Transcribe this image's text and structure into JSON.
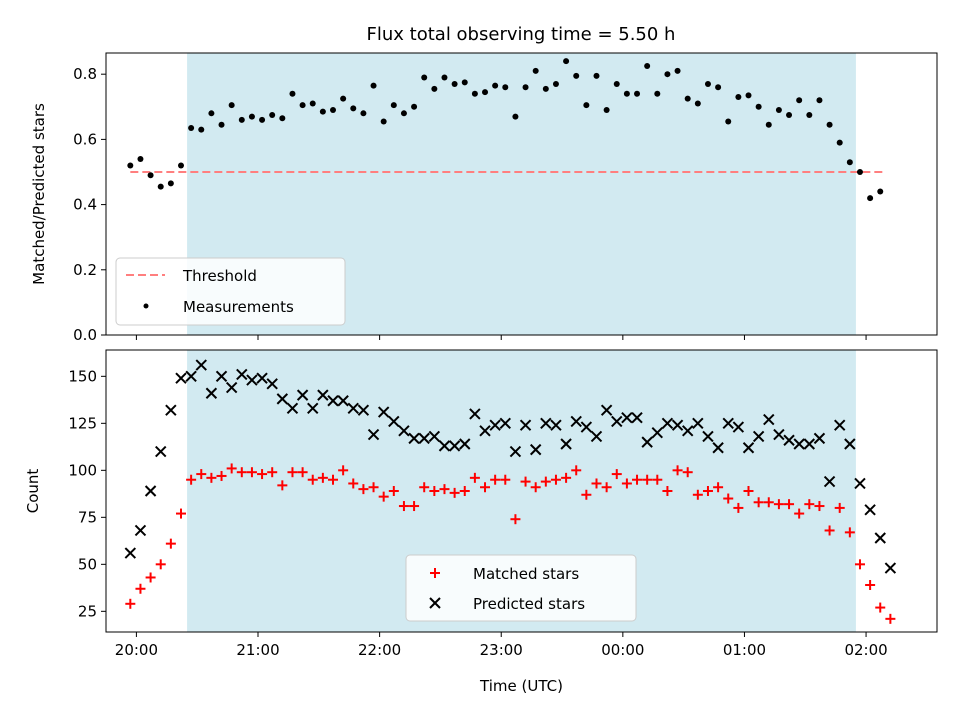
{
  "figure": {
    "title": "Flux total observing time = 5.50 h"
  },
  "colors": {
    "shade": "#add8e6",
    "threshold": "#ff7f7f",
    "measurement": "#000000",
    "matched": "#ff0000",
    "predicted": "#000000"
  },
  "chart_data": [
    {
      "type": "scatter",
      "panel": "top",
      "title": "Flux total observing time = 5.50 h",
      "xlabel": "",
      "ylabel": "Matched/Predicted stars",
      "xlim": [
        "19:45",
        "02:35"
      ],
      "ylim": [
        0,
        0.865
      ],
      "yticks": [
        0.0,
        0.2,
        0.4,
        0.6,
        0.8
      ],
      "ytick_labels": [
        "0.0",
        "0.2",
        "0.4",
        "0.6",
        "0.8"
      ],
      "shaded_interval": [
        "20:25",
        "01:55"
      ],
      "threshold": {
        "name": "Threshold",
        "value": 0.5,
        "x": [
          "19:57",
          "02:10"
        ],
        "style": "dashed"
      },
      "legend": {
        "placement": "lower-left",
        "entries": [
          "Threshold",
          "Measurements"
        ]
      },
      "series": [
        {
          "name": "Measurements",
          "marker": "dot",
          "points": [
            [
              "19:57",
              0.52
            ],
            [
              "20:02",
              0.54
            ],
            [
              "20:07",
              0.49
            ],
            [
              "20:12",
              0.455
            ],
            [
              "20:17",
              0.465
            ],
            [
              "20:22",
              0.52
            ],
            [
              "20:27",
              0.635
            ],
            [
              "20:32",
              0.63
            ],
            [
              "20:37",
              0.68
            ],
            [
              "20:42",
              0.645
            ],
            [
              "20:47",
              0.705
            ],
            [
              "20:52",
              0.66
            ],
            [
              "20:57",
              0.67
            ],
            [
              "21:02",
              0.66
            ],
            [
              "21:07",
              0.675
            ],
            [
              "21:12",
              0.665
            ],
            [
              "21:17",
              0.74
            ],
            [
              "21:22",
              0.705
            ],
            [
              "21:27",
              0.71
            ],
            [
              "21:32",
              0.685
            ],
            [
              "21:37",
              0.69
            ],
            [
              "21:42",
              0.725
            ],
            [
              "21:47",
              0.695
            ],
            [
              "21:52",
              0.68
            ],
            [
              "21:57",
              0.765
            ],
            [
              "22:02",
              0.655
            ],
            [
              "22:07",
              0.705
            ],
            [
              "22:12",
              0.68
            ],
            [
              "22:17",
              0.7
            ],
            [
              "22:22",
              0.79
            ],
            [
              "22:27",
              0.755
            ],
            [
              "22:32",
              0.79
            ],
            [
              "22:37",
              0.77
            ],
            [
              "22:42",
              0.775
            ],
            [
              "22:47",
              0.74
            ],
            [
              "22:52",
              0.745
            ],
            [
              "22:57",
              0.765
            ],
            [
              "23:02",
              0.76
            ],
            [
              "23:07",
              0.67
            ],
            [
              "23:12",
              0.76
            ],
            [
              "23:17",
              0.81
            ],
            [
              "23:22",
              0.755
            ],
            [
              "23:27",
              0.77
            ],
            [
              "23:32",
              0.84
            ],
            [
              "23:37",
              0.795
            ],
            [
              "23:42",
              0.705
            ],
            [
              "23:47",
              0.795
            ],
            [
              "23:52",
              0.69
            ],
            [
              "23:57",
              0.77
            ],
            [
              "00:02",
              0.74
            ],
            [
              "00:07",
              0.74
            ],
            [
              "00:12",
              0.825
            ],
            [
              "00:17",
              0.74
            ],
            [
              "00:22",
              0.8
            ],
            [
              "00:27",
              0.81
            ],
            [
              "00:32",
              0.725
            ],
            [
              "00:37",
              0.71
            ],
            [
              "00:42",
              0.77
            ],
            [
              "00:47",
              0.76
            ],
            [
              "00:52",
              0.655
            ],
            [
              "00:57",
              0.73
            ],
            [
              "01:02",
              0.735
            ],
            [
              "01:07",
              0.7
            ],
            [
              "01:12",
              0.645
            ],
            [
              "01:17",
              0.69
            ],
            [
              "01:22",
              0.675
            ],
            [
              "01:27",
              0.72
            ],
            [
              "01:32",
              0.675
            ],
            [
              "01:37",
              0.72
            ],
            [
              "01:42",
              0.645
            ],
            [
              "01:47",
              0.59
            ],
            [
              "01:52",
              0.53
            ],
            [
              "01:57",
              0.5
            ],
            [
              "02:02",
              0.42
            ],
            [
              "02:07",
              0.44
            ]
          ]
        }
      ]
    },
    {
      "type": "scatter",
      "panel": "bottom",
      "title": "",
      "xlabel": "Time (UTC)",
      "ylabel": "Count",
      "xlim": [
        "19:45",
        "02:35"
      ],
      "ylim": [
        14,
        164
      ],
      "xticks": [
        "20:00",
        "21:00",
        "22:00",
        "23:00",
        "00:00",
        "01:00",
        "02:00"
      ],
      "yticks": [
        25,
        50,
        75,
        100,
        125,
        150
      ],
      "shaded_interval": [
        "20:25",
        "01:55"
      ],
      "legend": {
        "placement": "lower-center",
        "entries": [
          "Matched stars",
          "Predicted stars"
        ]
      },
      "series": [
        {
          "name": "Matched stars",
          "marker": "plus",
          "points": [
            [
              "19:57",
              29
            ],
            [
              "20:02",
              37
            ],
            [
              "20:07",
              43
            ],
            [
              "20:12",
              50
            ],
            [
              "20:17",
              61
            ],
            [
              "20:22",
              77
            ],
            [
              "20:27",
              95
            ],
            [
              "20:32",
              98
            ],
            [
              "20:37",
              96
            ],
            [
              "20:42",
              97
            ],
            [
              "20:47",
              101
            ],
            [
              "20:52",
              99
            ],
            [
              "20:57",
              99
            ],
            [
              "21:02",
              98
            ],
            [
              "21:07",
              99
            ],
            [
              "21:12",
              92
            ],
            [
              "21:17",
              99
            ],
            [
              "21:22",
              99
            ],
            [
              "21:27",
              95
            ],
            [
              "21:32",
              96
            ],
            [
              "21:37",
              95
            ],
            [
              "21:42",
              100
            ],
            [
              "21:47",
              93
            ],
            [
              "21:52",
              90
            ],
            [
              "21:57",
              91
            ],
            [
              "22:02",
              86
            ],
            [
              "22:07",
              89
            ],
            [
              "22:12",
              81
            ],
            [
              "22:17",
              81
            ],
            [
              "22:22",
              91
            ],
            [
              "22:27",
              89
            ],
            [
              "22:32",
              90
            ],
            [
              "22:37",
              88
            ],
            [
              "22:42",
              89
            ],
            [
              "22:47",
              96
            ],
            [
              "22:52",
              91
            ],
            [
              "22:57",
              95
            ],
            [
              "23:02",
              95
            ],
            [
              "23:07",
              74
            ],
            [
              "23:12",
              94
            ],
            [
              "23:17",
              91
            ],
            [
              "23:22",
              94
            ],
            [
              "23:27",
              95
            ],
            [
              "23:32",
              96
            ],
            [
              "23:37",
              100
            ],
            [
              "23:42",
              87
            ],
            [
              "23:47",
              93
            ],
            [
              "23:52",
              91
            ],
            [
              "23:57",
              98
            ],
            [
              "00:02",
              93
            ],
            [
              "00:07",
              95
            ],
            [
              "00:12",
              95
            ],
            [
              "00:17",
              95
            ],
            [
              "00:22",
              89
            ],
            [
              "00:27",
              100
            ],
            [
              "00:32",
              99
            ],
            [
              "00:37",
              87
            ],
            [
              "00:42",
              89
            ],
            [
              "00:47",
              91
            ],
            [
              "00:52",
              85
            ],
            [
              "00:57",
              80
            ],
            [
              "01:02",
              89
            ],
            [
              "01:07",
              83
            ],
            [
              "01:12",
              83
            ],
            [
              "01:17",
              82
            ],
            [
              "01:22",
              82
            ],
            [
              "01:27",
              77
            ],
            [
              "01:32",
              82
            ],
            [
              "01:37",
              81
            ],
            [
              "01:42",
              68
            ],
            [
              "01:47",
              80
            ],
            [
              "01:52",
              67
            ],
            [
              "01:57",
              50
            ],
            [
              "02:02",
              39
            ],
            [
              "02:07",
              27
            ],
            [
              "02:12",
              21
            ]
          ]
        },
        {
          "name": "Predicted stars",
          "marker": "x",
          "points": [
            [
              "19:57",
              56
            ],
            [
              "20:02",
              68
            ],
            [
              "20:07",
              89
            ],
            [
              "20:12",
              110
            ],
            [
              "20:17",
              132
            ],
            [
              "20:22",
              149
            ],
            [
              "20:27",
              150
            ],
            [
              "20:32",
              156
            ],
            [
              "20:37",
              141
            ],
            [
              "20:42",
              150
            ],
            [
              "20:47",
              144
            ],
            [
              "20:52",
              151
            ],
            [
              "20:57",
              148
            ],
            [
              "21:02",
              149
            ],
            [
              "21:07",
              146
            ],
            [
              "21:12",
              138
            ],
            [
              "21:17",
              133
            ],
            [
              "21:22",
              140
            ],
            [
              "21:27",
              133
            ],
            [
              "21:32",
              140
            ],
            [
              "21:37",
              137
            ],
            [
              "21:42",
              137
            ],
            [
              "21:47",
              133
            ],
            [
              "21:52",
              132
            ],
            [
              "21:57",
              119
            ],
            [
              "22:02",
              131
            ],
            [
              "22:07",
              126
            ],
            [
              "22:12",
              121
            ],
            [
              "22:17",
              117
            ],
            [
              "22:22",
              117
            ],
            [
              "22:27",
              118
            ],
            [
              "22:32",
              113
            ],
            [
              "22:37",
              113
            ],
            [
              "22:42",
              114
            ],
            [
              "22:47",
              130
            ],
            [
              "22:52",
              121
            ],
            [
              "22:57",
              124
            ],
            [
              "23:02",
              125
            ],
            [
              "23:07",
              110
            ],
            [
              "23:12",
              124
            ],
            [
              "23:17",
              111
            ],
            [
              "23:22",
              125
            ],
            [
              "23:27",
              124
            ],
            [
              "23:32",
              114
            ],
            [
              "23:37",
              126
            ],
            [
              "23:42",
              123
            ],
            [
              "23:47",
              118
            ],
            [
              "23:52",
              132
            ],
            [
              "23:57",
              126
            ],
            [
              "00:02",
              128
            ],
            [
              "00:07",
              128
            ],
            [
              "00:12",
              115
            ],
            [
              "00:17",
              120
            ],
            [
              "00:22",
              125
            ],
            [
              "00:27",
              124
            ],
            [
              "00:32",
              121
            ],
            [
              "00:37",
              125
            ],
            [
              "00:42",
              118
            ],
            [
              "00:47",
              112
            ],
            [
              "00:52",
              125
            ],
            [
              "00:57",
              123
            ],
            [
              "01:02",
              112
            ],
            [
              "01:07",
              118
            ],
            [
              "01:12",
              127
            ],
            [
              "01:17",
              119
            ],
            [
              "01:22",
              116
            ],
            [
              "01:27",
              114
            ],
            [
              "01:32",
              114
            ],
            [
              "01:37",
              117
            ],
            [
              "01:42",
              94
            ],
            [
              "01:47",
              124
            ],
            [
              "01:52",
              114
            ],
            [
              "01:57",
              93
            ],
            [
              "02:02",
              79
            ],
            [
              "02:07",
              64
            ],
            [
              "02:12",
              48
            ]
          ]
        }
      ]
    }
  ]
}
